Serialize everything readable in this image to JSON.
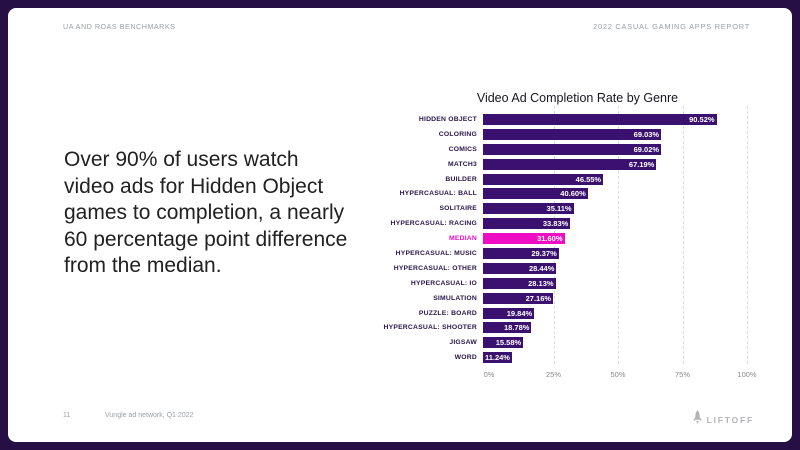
{
  "slide": {
    "frame_color": "#250f45",
    "card_color": "#ffffff"
  },
  "header": {
    "left_label": "UA AND ROAS BENCHMARKS",
    "right_label": "2022 CASUAL GAMING APPS REPORT"
  },
  "main_text": "Over 90% of users watch video ads for Hidden Object games to completion, a nearly 60 percentage point difference from the median.",
  "chart_data": {
    "type": "bar",
    "orientation": "horizontal",
    "title": "Video Ad Completion Rate by Genre",
    "categories": [
      "HIDDEN OBJECT",
      "COLORING",
      "COMICS",
      "MATCH3",
      "BUILDER",
      "HYPERCASUAL: BALL",
      "SOLITAIRE",
      "HYPERCASUAL: RACING",
      "MEDIAN",
      "HYPERCASUAL: MUSIC",
      "HYPERCASUAL: OTHER",
      "HYPERCASUAL: IO",
      "SIMULATION",
      "PUZZLE: BOARD",
      "HYPERCASUAL: SHOOTER",
      "JIGSAW",
      "WORD"
    ],
    "values": [
      90.52,
      69.03,
      69.02,
      67.19,
      46.55,
      40.6,
      35.11,
      33.83,
      31.6,
      29.37,
      28.44,
      28.13,
      27.16,
      19.84,
      18.78,
      15.58,
      11.24
    ],
    "value_labels": [
      "90.52%",
      "69.03%",
      "69.02%",
      "67.19%",
      "46.55%",
      "40.60%",
      "35.11%",
      "33.83%",
      "31.60%",
      "29.37%",
      "28.44%",
      "28.13%",
      "27.16%",
      "19.84%",
      "18.78%",
      "15.58%",
      "11.24%"
    ],
    "highlight_category": "MEDIAN",
    "bar_color": "#3b1170",
    "highlight_color": "#ee0cc4",
    "label_color": "#2a1548",
    "xlim": [
      0,
      100
    ],
    "x_ticks": [
      "0%",
      "25%",
      "50%",
      "75%",
      "100%"
    ],
    "grid": "dashed-vertical",
    "legend": "none"
  },
  "footer": {
    "page_number": "11",
    "source": "Vungle ad network, Q1 2022",
    "logo_text": "LIFTOFF"
  }
}
